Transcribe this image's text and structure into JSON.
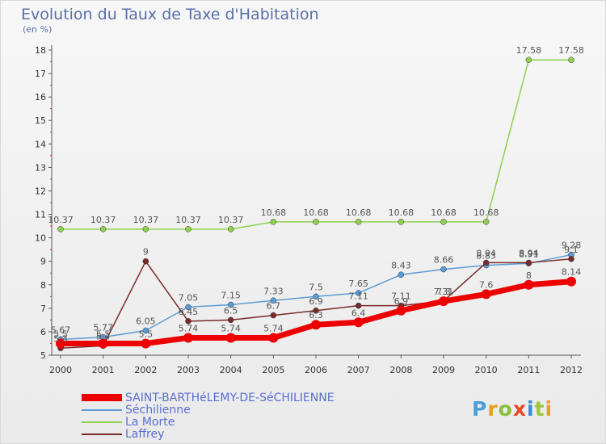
{
  "title": "Evolution du Taux de Taxe d'Habitation",
  "subtitle": "(en %)",
  "logo": {
    "letters": [
      "P",
      "r",
      "o",
      "x",
      "i",
      "t",
      "i"
    ],
    "colors": [
      "#4aa0d8",
      "#e8a020",
      "#8bbf3a",
      "#e04a2a",
      "#3a8ad0",
      "#9bc63a",
      "#e8a020"
    ]
  },
  "chart_data": {
    "type": "line",
    "title": "Evolution du Taux de Taxe d'Habitation",
    "ylabel": "(en %)",
    "x": [
      2000,
      2001,
      2002,
      2003,
      2004,
      2005,
      2006,
      2007,
      2008,
      2009,
      2010,
      2011,
      2012
    ],
    "ylim": [
      5,
      18
    ],
    "yticks": [
      5,
      6,
      7,
      8,
      9,
      10,
      11,
      12,
      13,
      14,
      15,
      16,
      17,
      18
    ],
    "grid": false,
    "legend": "bottom-left",
    "series": [
      {
        "name": "SAINT-BARTHéLEMY-DE-SéCHILIENNE",
        "color": "#ee0000",
        "width": 7,
        "marker": 6,
        "values": [
          5.5,
          5.5,
          5.5,
          5.74,
          5.74,
          5.74,
          6.3,
          6.4,
          6.9,
          7.3,
          7.6,
          8,
          8.14
        ],
        "labels": [
          "5.5",
          "5.5",
          "5.5",
          "5.74",
          "5.74",
          "5.74",
          "6.3",
          "6.4",
          "6.9",
          "7.3",
          "7.6",
          "8",
          "8.14"
        ]
      },
      {
        "name": "Séchilienne",
        "color": "#5b9bd5",
        "width": 1.5,
        "marker": 3.5,
        "values": [
          5.67,
          5.77,
          6.05,
          7.05,
          7.15,
          7.33,
          7.5,
          7.65,
          8.43,
          8.66,
          8.83,
          8.91,
          9.28
        ],
        "labels": [
          "5.67",
          "5.77",
          "6.05",
          "7.05",
          "7.15",
          "7.33",
          "7.5",
          "7.65",
          "8.43",
          "8.66",
          "8.83",
          "8.91",
          "9.28"
        ]
      },
      {
        "name": "La Morte",
        "color": "#8fd14f",
        "width": 1.5,
        "marker": 3.5,
        "values": [
          10.37,
          10.37,
          10.37,
          10.37,
          10.37,
          10.68,
          10.68,
          10.68,
          10.68,
          10.68,
          10.68,
          17.58,
          17.58
        ],
        "labels": [
          "10.37",
          "10.37",
          "10.37",
          "10.37",
          "10.37",
          "10.68",
          "10.68",
          "10.68",
          "10.68",
          "10.68",
          "10.68",
          "17.58",
          "17.58"
        ]
      },
      {
        "name": "Laffrey",
        "color": "#7a2a2a",
        "width": 1.5,
        "marker": 3.5,
        "values": [
          5.3,
          5.4,
          9,
          6.45,
          6.5,
          6.7,
          6.9,
          7.11,
          7.11,
          7.31,
          8.94,
          8.94,
          9.1
        ],
        "labels": [
          "5.3",
          "5.4",
          "9",
          "6.45",
          "6.5",
          "6.7",
          "6.9",
          "7.11",
          "7.11",
          "7.31",
          "8.94",
          "8.94",
          "9.1"
        ]
      }
    ]
  }
}
